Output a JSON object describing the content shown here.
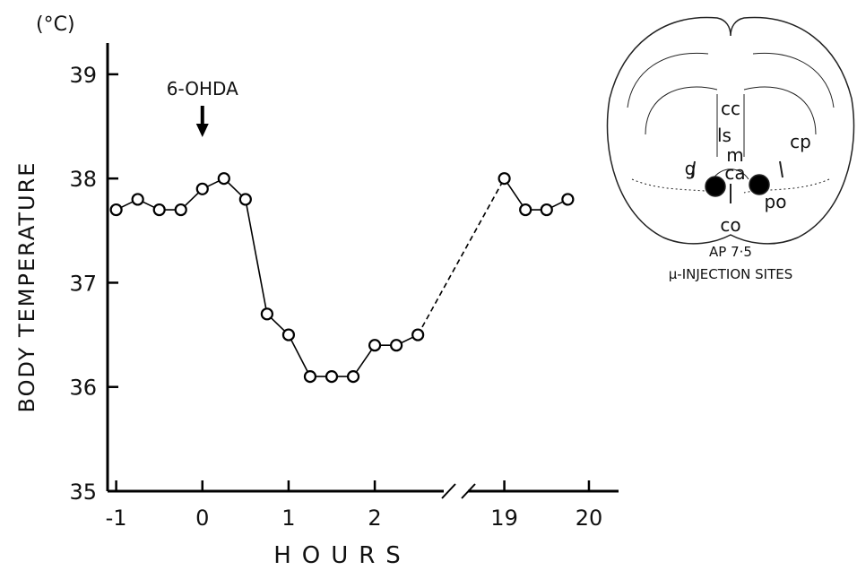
{
  "chart_data": {
    "type": "line",
    "y_unit": "(°C)",
    "ylabel": "BODY TEMPERATURE",
    "xlabel": "HOURS",
    "annotation": {
      "text": "6-OHDA",
      "x": 0
    },
    "ylim": [
      35,
      39.3
    ],
    "yticks": [
      35,
      36,
      37,
      38,
      39
    ],
    "x_segments": [
      {
        "xlim": [
          -1.1,
          2.8
        ],
        "xticks": [
          -1,
          0,
          1,
          2
        ]
      },
      {
        "xlim": [
          18.57,
          20.35
        ],
        "xticks": [
          19,
          20
        ]
      }
    ],
    "x": [
      -1,
      -0.75,
      -0.5,
      -0.25,
      0,
      0.25,
      0.5,
      0.75,
      1,
      1.25,
      1.5,
      1.75,
      2,
      2.25,
      2.5,
      19,
      19.25,
      19.5,
      19.75
    ],
    "series": [
      {
        "color": "#000000",
        "values": [
          37.7,
          37.8,
          37.7,
          37.7,
          37.9,
          38.0,
          37.8,
          36.7,
          36.5,
          36.1,
          36.1,
          36.1,
          36.4,
          36.4,
          36.5,
          38.0,
          37.7,
          37.7,
          37.8
        ]
      }
    ]
  },
  "inset": {
    "labels": [
      "cc",
      "ls",
      "cp",
      "m",
      "g",
      "ca",
      "po",
      "co"
    ],
    "level": "AP  7·5",
    "caption": "μ-INJECTION  SITES"
  }
}
